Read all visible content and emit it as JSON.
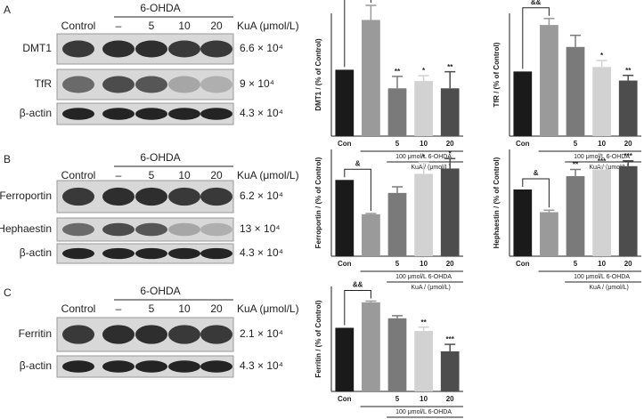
{
  "panels": [
    {
      "label": "A",
      "header": "6-OHDA",
      "lanes": [
        "Control",
        "–",
        "5",
        "10",
        "20"
      ],
      "unit": "KuA (μmol/L)",
      "rows": [
        {
          "name": "DMT1",
          "mw": "6.6 × 10⁴"
        },
        {
          "name": "TfR",
          "mw": "9 × 10⁴"
        },
        {
          "name": "β-actin",
          "mw": "4.3 × 10⁴"
        }
      ]
    },
    {
      "label": "B",
      "header": "6-OHDA",
      "lanes": [
        "Control",
        "–",
        "5",
        "10",
        "20"
      ],
      "unit": "KuA (μmol/L)",
      "rows": [
        {
          "name": "Ferroportin",
          "mw": "6.2 × 10⁴"
        },
        {
          "name": "Hephaestin",
          "mw": "13 × 10⁴"
        },
        {
          "name": "β-actin",
          "mw": "4.3 × 10⁴"
        }
      ]
    },
    {
      "label": "C",
      "header": "6-OHDA",
      "lanes": [
        "Control",
        "–",
        "5",
        "10",
        "20"
      ],
      "unit": "KuA (μmol/L)",
      "rows": [
        {
          "name": "Ferritin",
          "mw": "2.1 × 10⁴"
        },
        {
          "name": "β-actin",
          "mw": "4.3 × 10⁴"
        }
      ]
    }
  ],
  "chart_data": [
    {
      "type": "bar",
      "y_label": "DMT1 / (% of Control)",
      "categories": [
        "Con",
        null,
        "5",
        "10",
        "20"
      ],
      "values": [
        100,
        175,
        72,
        83,
        72
      ],
      "errors": [
        0,
        22,
        18,
        8,
        25
      ],
      "colors": [
        "#1a1a1a",
        "#9a9a9a",
        "#7a7a7a",
        "#d2d2d2",
        "#4d4d4d"
      ],
      "stars": [
        null,
        null,
        "**",
        "*",
        "**"
      ],
      "bracket_label": "&",
      "group_label": "100 μmol/L 6-OHDA",
      "dose_label": "KuA / (μmol/L)",
      "ylim": [
        0,
        185
      ]
    },
    {
      "type": "bar",
      "y_label": "TfR / (% of Control)",
      "categories": [
        "Con",
        null,
        "5",
        "10",
        "20"
      ],
      "values": [
        100,
        172,
        138,
        107,
        86
      ],
      "errors": [
        0,
        10,
        18,
        10,
        8
      ],
      "colors": [
        "#1a1a1a",
        "#9a9a9a",
        "#7a7a7a",
        "#d2d2d2",
        "#4d4d4d"
      ],
      "stars": [
        null,
        null,
        null,
        "*",
        "**"
      ],
      "bracket_label": "&&",
      "group_label": "100 μmol/L 6-OHDA",
      "dose_label": "KuA / (μmol/L)",
      "ylim": [
        0,
        190
      ]
    },
    {
      "type": "bar",
      "y_label": "Ferroportin / (% of Control)",
      "categories": [
        "Con",
        null,
        "5",
        "10",
        "20"
      ],
      "values": [
        100,
        55,
        83,
        108,
        115
      ],
      "errors": [
        0,
        1,
        8,
        15,
        13
      ],
      "colors": [
        "#1a1a1a",
        "#9a9a9a",
        "#7a7a7a",
        "#d2d2d2",
        "#4d4d4d"
      ],
      "stars": [
        null,
        null,
        null,
        "*",
        "*"
      ],
      "bracket_label": "&",
      "group_label": "100 μmol/L 6-OHDA",
      "dose_label": "KuA / (μmol/L)",
      "ylim": [
        0,
        140
      ]
    },
    {
      "type": "bar",
      "y_label": "Hephaestin / (% of Control)",
      "categories": [
        "Con",
        null,
        "5",
        "10",
        "20"
      ],
      "values": [
        100,
        66,
        120,
        130,
        135
      ],
      "errors": [
        0,
        3,
        10,
        5,
        8
      ],
      "colors": [
        "#1a1a1a",
        "#9a9a9a",
        "#7a7a7a",
        "#d2d2d2",
        "#4d4d4d"
      ],
      "stars": [
        null,
        null,
        "**",
        "***",
        "***"
      ],
      "bracket_label": "&",
      "group_label": "100 μmol/L 6-OHDA",
      "dose_label": "KuA / (μmol/L)",
      "ylim": [
        0,
        160
      ]
    },
    {
      "type": "bar",
      "y_label": "Ferritin / (% of Control)",
      "categories": [
        "Con",
        null,
        "5",
        "10",
        "20"
      ],
      "values": [
        100,
        140,
        115,
        95,
        63
      ],
      "errors": [
        0,
        2,
        4,
        6,
        11
      ],
      "colors": [
        "#1a1a1a",
        "#9a9a9a",
        "#7a7a7a",
        "#d2d2d2",
        "#4d4d4d"
      ],
      "stars": [
        null,
        null,
        null,
        "**",
        "***"
      ],
      "bracket_label": "&&",
      "group_label": "100 μmol/L 6-OHDA",
      "dose_label": "KuA / (μmol/L)",
      "ylim": [
        0,
        165
      ]
    }
  ]
}
